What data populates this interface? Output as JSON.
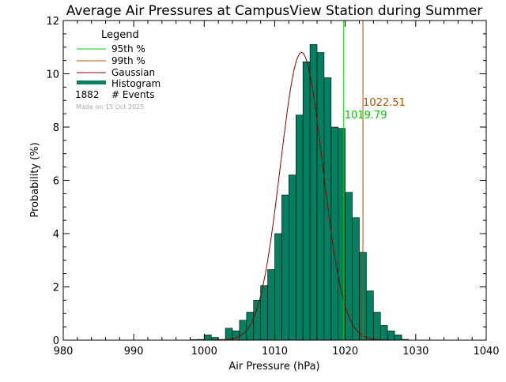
{
  "chart_data": {
    "type": "bar",
    "title": "Average Air Pressures at CampusView Station during Summer",
    "xlabel": "Air Pressure (hPa)",
    "ylabel": "Probability (%)",
    "xlim": [
      980,
      1040
    ],
    "ylim": [
      0,
      12
    ],
    "x_ticks": [
      "980",
      "990",
      "1000",
      "1010",
      "1020",
      "1030",
      "1040"
    ],
    "y_ticks": [
      "0",
      "2",
      "4",
      "6",
      "8",
      "10",
      "12"
    ],
    "grid": false,
    "legend_position": "top-left",
    "legend": {
      "title": "Legend",
      "items": [
        {
          "label": "95th %",
          "color": "#00cc00"
        },
        {
          "label": "99th %",
          "color": "#b05000"
        },
        {
          "label": "Gaussian",
          "color": "#8b0000"
        },
        {
          "label": "Histogram",
          "color": "#008060"
        }
      ],
      "events_count": "1882",
      "events_label": "# Events",
      "made_on": "Made on 15 Oct 2025"
    },
    "histogram": {
      "bin_width": 1,
      "x": [
        998,
        999,
        1000,
        1001,
        1002,
        1003,
        1004,
        1005,
        1006,
        1007,
        1008,
        1009,
        1010,
        1011,
        1012,
        1013,
        1014,
        1015,
        1016,
        1017,
        1018,
        1019,
        1020,
        1021,
        1022,
        1023,
        1024,
        1025,
        1026,
        1027,
        1028
      ],
      "values": [
        0.02,
        0.03,
        0.2,
        0.1,
        0.03,
        0.45,
        0.35,
        0.75,
        1.05,
        1.5,
        2.05,
        2.65,
        4.0,
        5.45,
        6.2,
        8.45,
        10.45,
        11.1,
        10.8,
        9.85,
        8.0,
        7.95,
        5.55,
        4.6,
        3.3,
        1.85,
        1.05,
        0.55,
        0.35,
        0.2,
        0.03
      ]
    },
    "gaussian": {
      "mean": 1013.8,
      "peak": 10.8,
      "sigma": 3.0
    },
    "percentile_95": {
      "value": 1019.79,
      "label": "1019.79"
    },
    "percentile_99": {
      "value": 1022.51,
      "label": "1022.51"
    },
    "colors": {
      "histogram_fill": "#008060",
      "histogram_edge": "#000000",
      "gaussian": "#8b0000",
      "p95": "#00cc00",
      "p99": "#b05000",
      "made_on": "#aaaaaa",
      "axes": "#000000"
    }
  }
}
